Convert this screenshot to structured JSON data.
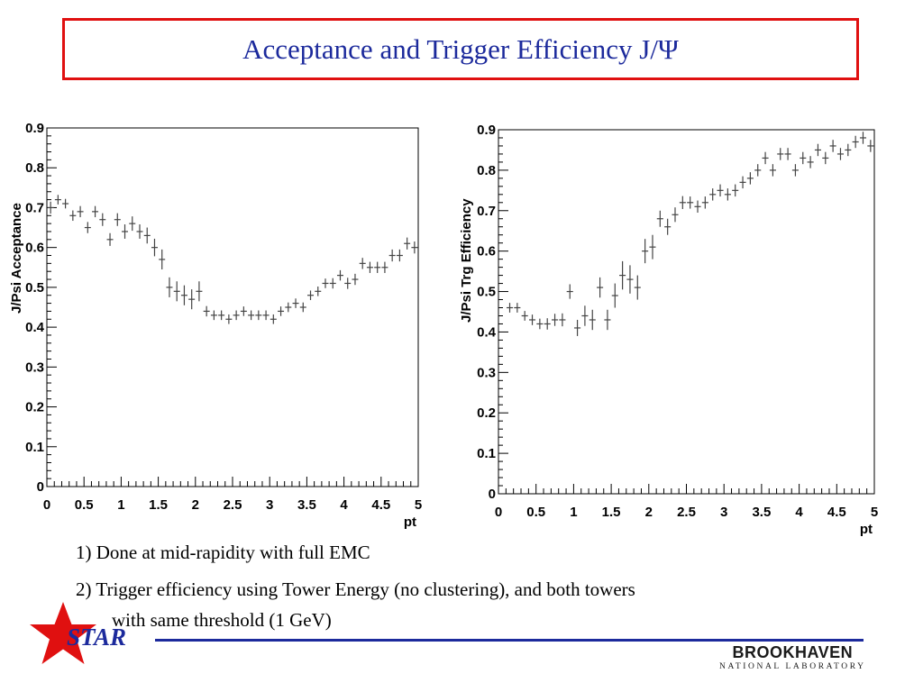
{
  "title": "Acceptance and Trigger Efficiency J/Ψ",
  "chart_data": [
    {
      "type": "scatter",
      "title": "",
      "xlabel": "pt",
      "ylabel": "J/Psi Acceptance",
      "xlim": [
        0,
        5
      ],
      "ylim": [
        0,
        0.9
      ],
      "x_ticks": [
        "0",
        "0.5",
        "1",
        "1.5",
        "2",
        "2.5",
        "3",
        "3.5",
        "4",
        "4.5",
        "5"
      ],
      "y_ticks": [
        "0",
        "0.1",
        "0.2",
        "0.3",
        "0.4",
        "0.5",
        "0.6",
        "0.7",
        "0.8",
        "0.9"
      ],
      "grid": false,
      "marker": "cross-with-error-bars",
      "x": [
        0.05,
        0.15,
        0.25,
        0.35,
        0.45,
        0.55,
        0.65,
        0.75,
        0.85,
        0.95,
        1.05,
        1.15,
        1.25,
        1.35,
        1.45,
        1.55,
        1.65,
        1.75,
        1.85,
        1.95,
        2.05,
        2.15,
        2.25,
        2.35,
        2.45,
        2.55,
        2.65,
        2.75,
        2.85,
        2.95,
        3.05,
        3.15,
        3.25,
        3.35,
        3.45,
        3.55,
        3.65,
        3.75,
        3.85,
        3.95,
        4.05,
        4.15,
        4.25,
        4.35,
        4.45,
        4.55,
        4.65,
        4.75,
        4.85,
        4.95
      ],
      "y": [
        0.7,
        0.72,
        0.71,
        0.68,
        0.69,
        0.65,
        0.69,
        0.67,
        0.62,
        0.67,
        0.64,
        0.66,
        0.64,
        0.63,
        0.6,
        0.57,
        0.5,
        0.49,
        0.48,
        0.47,
        0.49,
        0.44,
        0.43,
        0.43,
        0.42,
        0.43,
        0.44,
        0.43,
        0.43,
        0.43,
        0.42,
        0.44,
        0.45,
        0.46,
        0.45,
        0.48,
        0.49,
        0.51,
        0.51,
        0.53,
        0.51,
        0.52,
        0.56,
        0.55,
        0.55,
        0.55,
        0.58,
        0.58,
        0.61,
        0.6
      ],
      "err": [
        0.015,
        0.012,
        0.012,
        0.013,
        0.014,
        0.014,
        0.014,
        0.016,
        0.016,
        0.016,
        0.018,
        0.018,
        0.018,
        0.02,
        0.022,
        0.025,
        0.025,
        0.025,
        0.025,
        0.025,
        0.025,
        0.013,
        0.012,
        0.012,
        0.012,
        0.012,
        0.012,
        0.012,
        0.012,
        0.012,
        0.012,
        0.012,
        0.012,
        0.012,
        0.012,
        0.012,
        0.012,
        0.012,
        0.013,
        0.013,
        0.014,
        0.014,
        0.014,
        0.014,
        0.014,
        0.014,
        0.015,
        0.015,
        0.015,
        0.015
      ]
    },
    {
      "type": "scatter",
      "title": "",
      "xlabel": "pt",
      "ylabel": "J/Psi Trg Efficiency",
      "xlim": [
        0,
        5
      ],
      "ylim": [
        0,
        0.9
      ],
      "x_ticks": [
        "0",
        "0.5",
        "1",
        "1.5",
        "2",
        "2.5",
        "3",
        "3.5",
        "4",
        "4.5",
        "5"
      ],
      "y_ticks": [
        "0",
        "0.1",
        "0.2",
        "0.3",
        "0.4",
        "0.5",
        "0.6",
        "0.7",
        "0.8",
        "0.9"
      ],
      "grid": false,
      "marker": "cross-with-error-bars",
      "x": [
        0.15,
        0.25,
        0.35,
        0.45,
        0.55,
        0.65,
        0.75,
        0.85,
        0.95,
        1.05,
        1.15,
        1.25,
        1.35,
        1.45,
        1.55,
        1.65,
        1.75,
        1.85,
        1.95,
        2.05,
        2.15,
        2.25,
        2.35,
        2.45,
        2.55,
        2.65,
        2.75,
        2.85,
        2.95,
        3.05,
        3.15,
        3.25,
        3.35,
        3.45,
        3.55,
        3.65,
        3.75,
        3.85,
        3.95,
        4.05,
        4.15,
        4.25,
        4.35,
        4.45,
        4.55,
        4.65,
        4.75,
        4.85,
        4.95
      ],
      "y": [
        0.46,
        0.46,
        0.44,
        0.43,
        0.42,
        0.42,
        0.43,
        0.43,
        0.5,
        0.41,
        0.44,
        0.43,
        0.51,
        0.43,
        0.49,
        0.54,
        0.53,
        0.51,
        0.6,
        0.61,
        0.68,
        0.66,
        0.69,
        0.72,
        0.72,
        0.71,
        0.72,
        0.74,
        0.75,
        0.74,
        0.75,
        0.77,
        0.78,
        0.8,
        0.83,
        0.8,
        0.84,
        0.84,
        0.8,
        0.83,
        0.82,
        0.85,
        0.83,
        0.86,
        0.84,
        0.85,
        0.87,
        0.88,
        0.86
      ],
      "err": [
        0.012,
        0.012,
        0.012,
        0.013,
        0.013,
        0.014,
        0.015,
        0.016,
        0.018,
        0.02,
        0.025,
        0.025,
        0.025,
        0.025,
        0.03,
        0.035,
        0.035,
        0.03,
        0.03,
        0.03,
        0.02,
        0.02,
        0.018,
        0.016,
        0.015,
        0.015,
        0.015,
        0.015,
        0.015,
        0.015,
        0.015,
        0.015,
        0.015,
        0.015,
        0.015,
        0.015,
        0.015,
        0.015,
        0.015,
        0.015,
        0.015,
        0.015,
        0.015,
        0.015,
        0.015,
        0.015,
        0.015,
        0.015,
        0.015
      ]
    }
  ],
  "notes": [
    "1) Done at mid-rapidity with full EMC",
    "2) Trigger efficiency using Tower Energy (no clustering), and both towers",
    "with same threshold (1 GeV)"
  ],
  "logos": {
    "star_text": "STAR",
    "lab_name": "BROOKHAVEN",
    "lab_subtitle": "NATIONAL LABORATORY"
  },
  "colors": {
    "title": "#1c2a9c",
    "title_border": "#e01010",
    "marker": "#444444",
    "star_red": "#e01010",
    "footer_line": "#1c2a9c"
  }
}
